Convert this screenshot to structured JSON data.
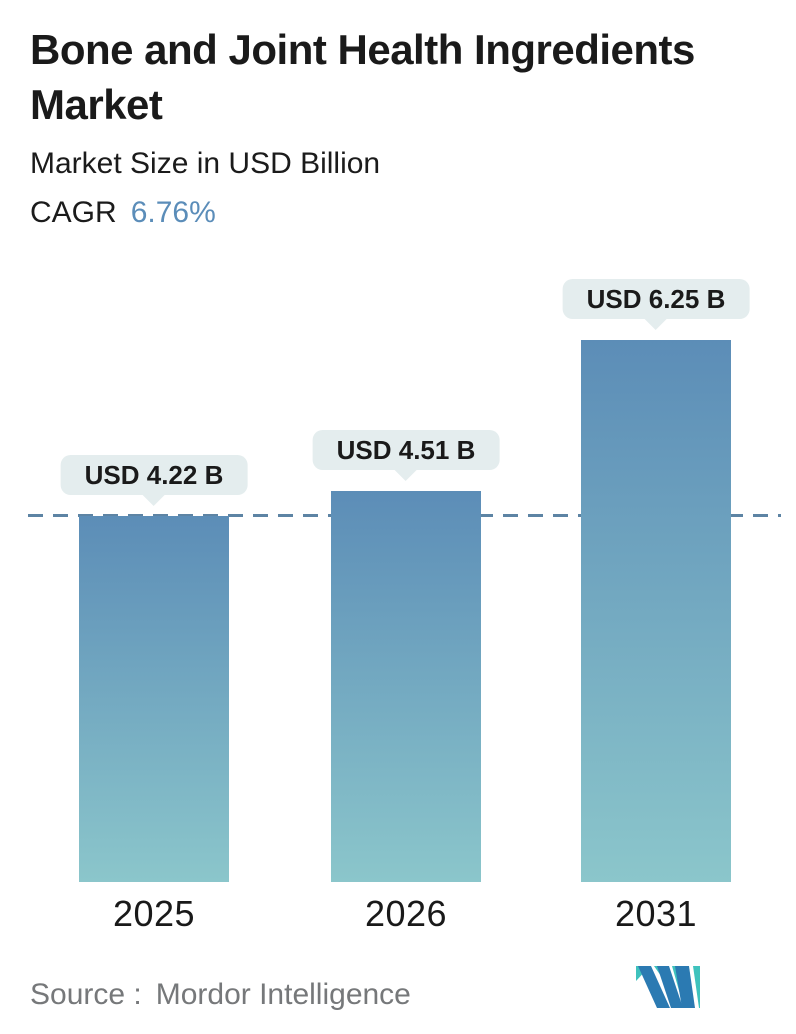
{
  "header": {
    "title": "Bone and Joint Health Ingredients Market",
    "subtitle": "Market Size in USD Billion",
    "cagr_label": "CAGR",
    "cagr_value": "6.76%"
  },
  "chart_data": {
    "type": "bar",
    "title": "Bone and Joint Health Ingredients Market",
    "ylabel": "Market Size in USD Billion",
    "categories": [
      "2025",
      "2026",
      "2031"
    ],
    "values": [
      4.22,
      4.51,
      6.25
    ],
    "bar_labels": [
      "USD 4.22 B",
      "USD 4.51 B",
      "USD 6.25 B"
    ],
    "unit": "USD Billion",
    "cagr": "6.76%",
    "reference_line": {
      "style": "dashed",
      "value": 4.22
    },
    "ylim": [
      0,
      7.2
    ],
    "grid": false,
    "legend": false,
    "colors": {
      "bar_gradient_top": "#5c8db7",
      "bar_gradient_bottom": "#8bc6cb",
      "reference_line": "#5d84a4",
      "label_bubble_bg": "#e4edee",
      "label_text": "#1a1a1a",
      "cagr_accent": "#5b8db9",
      "logo_blue": "#2b7ab2",
      "logo_teal": "#3fc2bd"
    }
  },
  "footer": {
    "source_label": "Source :",
    "source_value": "Mordor Intelligence",
    "logo": "mordor-intelligence-logo"
  }
}
